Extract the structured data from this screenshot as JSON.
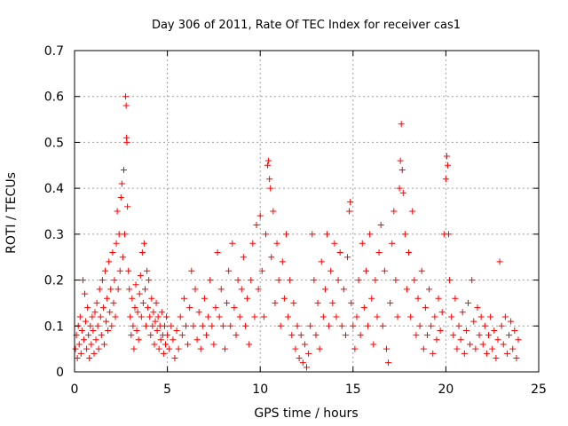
{
  "chart_data": {
    "type": "scatter",
    "title": "Day 306 of 2011, Rate Of TEC Index for receiver cas1",
    "xlabel": "GPS time / hours",
    "ylabel": "ROTI / TECUs",
    "xlim": [
      0,
      25
    ],
    "ylim": [
      0,
      0.7
    ],
    "x_ticks": [
      0,
      5,
      10,
      15,
      20,
      25
    ],
    "y_ticks": [
      0,
      0.1,
      0.2,
      0.3,
      0.4,
      0.5,
      0.6,
      0.7
    ],
    "x_tick_labels": [
      "0",
      "5",
      "10",
      "15",
      "20",
      "25"
    ],
    "y_tick_labels": [
      "0",
      "0.1",
      "0.2",
      "0.3",
      "0.4",
      "0.5",
      "0.6",
      "0.7"
    ],
    "grid": true,
    "marker": "+",
    "series": [
      {
        "name": "ROTI",
        "color": "#ff0000",
        "points": [
          [
            0.05,
            0.05
          ],
          [
            0.1,
            0.08
          ],
          [
            0.15,
            0.03
          ],
          [
            0.2,
            0.1
          ],
          [
            0.25,
            0.06
          ],
          [
            0.3,
            0.12
          ],
          [
            0.35,
            0.04
          ],
          [
            0.4,
            0.09
          ],
          [
            0.45,
            0.2
          ],
          [
            0.5,
            0.07
          ],
          [
            0.55,
            0.17
          ],
          [
            0.6,
            0.11
          ],
          [
            0.65,
            0.05
          ],
          [
            0.7,
            0.14
          ],
          [
            0.75,
            0.08
          ],
          [
            0.8,
            0.03
          ],
          [
            0.85,
            0.1
          ],
          [
            0.9,
            0.06
          ],
          [
            0.95,
            0.12
          ],
          [
            1.0,
            0.09
          ],
          [
            1.05,
            0.04
          ],
          [
            1.1,
            0.13
          ],
          [
            1.15,
            0.07
          ],
          [
            1.2,
            0.15
          ],
          [
            1.25,
            0.1
          ],
          [
            1.3,
            0.05
          ],
          [
            1.35,
            0.18
          ],
          [
            1.4,
            0.12
          ],
          [
            1.45,
            0.08
          ],
          [
            1.5,
            0.2
          ],
          [
            1.55,
            0.14
          ],
          [
            1.6,
            0.06
          ],
          [
            1.65,
            0.22
          ],
          [
            1.7,
            0.11
          ],
          [
            1.75,
            0.16
          ],
          [
            1.8,
            0.09
          ],
          [
            1.85,
            0.24
          ],
          [
            1.9,
            0.13
          ],
          [
            1.95,
            0.18
          ],
          [
            2.0,
            0.1
          ],
          [
            2.05,
            0.26
          ],
          [
            2.1,
            0.15
          ],
          [
            2.15,
            0.2
          ],
          [
            2.2,
            0.12
          ],
          [
            2.25,
            0.28
          ],
          [
            2.3,
            0.35
          ],
          [
            2.35,
            0.18
          ],
          [
            2.4,
            0.3
          ],
          [
            2.45,
            0.22
          ],
          [
            2.5,
            0.38
          ],
          [
            2.55,
            0.41
          ],
          [
            2.6,
            0.25
          ],
          [
            2.65,
            0.44
          ],
          [
            2.7,
            0.3
          ],
          [
            2.75,
            0.6
          ],
          [
            2.78,
            0.58
          ],
          [
            2.8,
            0.51
          ],
          [
            2.82,
            0.5
          ],
          [
            2.85,
            0.36
          ],
          [
            2.9,
            0.22
          ],
          [
            2.95,
            0.18
          ],
          [
            3.0,
            0.12
          ],
          [
            3.05,
            0.08
          ],
          [
            3.1,
            0.16
          ],
          [
            3.15,
            0.1
          ],
          [
            3.2,
            0.05
          ],
          [
            3.25,
            0.14
          ],
          [
            3.3,
            0.19
          ],
          [
            3.35,
            0.09
          ],
          [
            3.4,
            0.13
          ],
          [
            3.45,
            0.07
          ],
          [
            3.5,
            0.17
          ],
          [
            3.55,
            0.21
          ],
          [
            3.6,
            0.12
          ],
          [
            3.65,
            0.26
          ],
          [
            3.7,
            0.15
          ],
          [
            3.75,
            0.28
          ],
          [
            3.8,
            0.18
          ],
          [
            3.85,
            0.1
          ],
          [
            3.9,
            0.22
          ],
          [
            3.95,
            0.14
          ],
          [
            4.0,
            0.2
          ],
          [
            4.05,
            0.12
          ],
          [
            4.1,
            0.08
          ],
          [
            4.15,
            0.16
          ],
          [
            4.2,
            0.1
          ],
          [
            4.25,
            0.13
          ],
          [
            4.3,
            0.06
          ],
          [
            4.35,
            0.11
          ],
          [
            4.4,
            0.15
          ],
          [
            4.45,
            0.09
          ],
          [
            4.5,
            0.12
          ],
          [
            4.55,
            0.05
          ],
          [
            4.6,
            0.1
          ],
          [
            4.65,
            0.07
          ],
          [
            4.7,
            0.13
          ],
          [
            4.75,
            0.08
          ],
          [
            4.8,
            0.04
          ],
          [
            4.85,
            0.1
          ],
          [
            4.9,
            0.06
          ],
          [
            4.95,
            0.12
          ],
          [
            5.0,
            0.08
          ],
          [
            5.1,
            0.05
          ],
          [
            5.2,
            0.1
          ],
          [
            5.3,
            0.07
          ],
          [
            5.4,
            0.03
          ],
          [
            5.5,
            0.09
          ],
          [
            5.6,
            0.05
          ],
          [
            5.7,
            0.12
          ],
          [
            5.8,
            0.08
          ],
          [
            5.9,
            0.16
          ],
          [
            6.0,
            0.1
          ],
          [
            6.1,
            0.06
          ],
          [
            6.2,
            0.14
          ],
          [
            6.3,
            0.22
          ],
          [
            6.4,
            0.1
          ],
          [
            6.5,
            0.18
          ],
          [
            6.6,
            0.07
          ],
          [
            6.7,
            0.13
          ],
          [
            6.8,
            0.05
          ],
          [
            6.9,
            0.1
          ],
          [
            7.0,
            0.16
          ],
          [
            7.1,
            0.08
          ],
          [
            7.2,
            0.12
          ],
          [
            7.3,
            0.2
          ],
          [
            7.4,
            0.1
          ],
          [
            7.5,
            0.06
          ],
          [
            7.6,
            0.14
          ],
          [
            7.7,
            0.26
          ],
          [
            7.8,
            0.12
          ],
          [
            7.9,
            0.18
          ],
          [
            8.0,
            0.1
          ],
          [
            8.1,
            0.05
          ],
          [
            8.2,
            0.15
          ],
          [
            8.3,
            0.22
          ],
          [
            8.4,
            0.1
          ],
          [
            8.5,
            0.28
          ],
          [
            8.6,
            0.14
          ],
          [
            8.7,
            0.08
          ],
          [
            8.8,
            0.2
          ],
          [
            8.9,
            0.12
          ],
          [
            9.0,
            0.18
          ],
          [
            9.1,
            0.25
          ],
          [
            9.2,
            0.1
          ],
          [
            9.3,
            0.16
          ],
          [
            9.4,
            0.06
          ],
          [
            9.5,
            0.2
          ],
          [
            9.6,
            0.28
          ],
          [
            9.7,
            0.12
          ],
          [
            9.8,
            0.32
          ],
          [
            9.9,
            0.18
          ],
          [
            10.0,
            0.34
          ],
          [
            10.1,
            0.22
          ],
          [
            10.2,
            0.12
          ],
          [
            10.3,
            0.3
          ],
          [
            10.4,
            0.45
          ],
          [
            10.45,
            0.46
          ],
          [
            10.5,
            0.42
          ],
          [
            10.55,
            0.4
          ],
          [
            10.6,
            0.25
          ],
          [
            10.7,
            0.35
          ],
          [
            10.8,
            0.15
          ],
          [
            10.9,
            0.28
          ],
          [
            11.0,
            0.2
          ],
          [
            11.1,
            0.1
          ],
          [
            11.2,
            0.24
          ],
          [
            11.3,
            0.16
          ],
          [
            11.4,
            0.3
          ],
          [
            11.5,
            0.12
          ],
          [
            11.6,
            0.2
          ],
          [
            11.7,
            0.08
          ],
          [
            11.8,
            0.15
          ],
          [
            11.9,
            0.05
          ],
          [
            12.0,
            0.1
          ],
          [
            12.1,
            0.03
          ],
          [
            12.2,
            0.08
          ],
          [
            12.3,
            0.02
          ],
          [
            12.4,
            0.06
          ],
          [
            12.5,
            0.01
          ],
          [
            12.6,
            0.04
          ],
          [
            12.7,
            0.1
          ],
          [
            12.8,
            0.3
          ],
          [
            12.9,
            0.2
          ],
          [
            13.0,
            0.08
          ],
          [
            13.1,
            0.15
          ],
          [
            13.2,
            0.05
          ],
          [
            13.3,
            0.24
          ],
          [
            13.4,
            0.12
          ],
          [
            13.5,
            0.18
          ],
          [
            13.6,
            0.3
          ],
          [
            13.7,
            0.1
          ],
          [
            13.8,
            0.22
          ],
          [
            13.9,
            0.15
          ],
          [
            14.0,
            0.28
          ],
          [
            14.1,
            0.12
          ],
          [
            14.2,
            0.2
          ],
          [
            14.3,
            0.26
          ],
          [
            14.4,
            0.1
          ],
          [
            14.5,
            0.18
          ],
          [
            14.6,
            0.08
          ],
          [
            14.7,
            0.25
          ],
          [
            14.8,
            0.35
          ],
          [
            14.85,
            0.37
          ],
          [
            14.9,
            0.15
          ],
          [
            15.0,
            0.1
          ],
          [
            15.1,
            0.05
          ],
          [
            15.2,
            0.12
          ],
          [
            15.3,
            0.2
          ],
          [
            15.4,
            0.08
          ],
          [
            15.5,
            0.28
          ],
          [
            15.6,
            0.14
          ],
          [
            15.7,
            0.22
          ],
          [
            15.8,
            0.1
          ],
          [
            15.9,
            0.3
          ],
          [
            16.0,
            0.16
          ],
          [
            16.1,
            0.06
          ],
          [
            16.2,
            0.2
          ],
          [
            16.3,
            0.12
          ],
          [
            16.4,
            0.26
          ],
          [
            16.5,
            0.32
          ],
          [
            16.6,
            0.1
          ],
          [
            16.7,
            0.22
          ],
          [
            16.8,
            0.05
          ],
          [
            16.9,
            0.02
          ],
          [
            17.0,
            0.15
          ],
          [
            17.1,
            0.28
          ],
          [
            17.2,
            0.35
          ],
          [
            17.3,
            0.2
          ],
          [
            17.4,
            0.12
          ],
          [
            17.5,
            0.4
          ],
          [
            17.55,
            0.46
          ],
          [
            17.6,
            0.54
          ],
          [
            17.65,
            0.44
          ],
          [
            17.7,
            0.39
          ],
          [
            17.8,
            0.3
          ],
          [
            17.9,
            0.18
          ],
          [
            18.0,
            0.26
          ],
          [
            18.1,
            0.12
          ],
          [
            18.2,
            0.35
          ],
          [
            18.3,
            0.2
          ],
          [
            18.4,
            0.08
          ],
          [
            18.5,
            0.16
          ],
          [
            18.6,
            0.1
          ],
          [
            18.7,
            0.22
          ],
          [
            18.8,
            0.05
          ],
          [
            18.9,
            0.14
          ],
          [
            19.0,
            0.08
          ],
          [
            19.1,
            0.18
          ],
          [
            19.2,
            0.1
          ],
          [
            19.3,
            0.04
          ],
          [
            19.4,
            0.12
          ],
          [
            19.5,
            0.07
          ],
          [
            19.6,
            0.16
          ],
          [
            19.7,
            0.09
          ],
          [
            19.8,
            0.13
          ],
          [
            19.9,
            0.3
          ],
          [
            20.0,
            0.42
          ],
          [
            20.05,
            0.47
          ],
          [
            20.1,
            0.45
          ],
          [
            20.15,
            0.3
          ],
          [
            20.2,
            0.2
          ],
          [
            20.3,
            0.12
          ],
          [
            20.4,
            0.08
          ],
          [
            20.5,
            0.16
          ],
          [
            20.6,
            0.05
          ],
          [
            20.7,
            0.1
          ],
          [
            20.8,
            0.07
          ],
          [
            20.9,
            0.13
          ],
          [
            21.0,
            0.04
          ],
          [
            21.1,
            0.09
          ],
          [
            21.2,
            0.15
          ],
          [
            21.3,
            0.06
          ],
          [
            21.4,
            0.2
          ],
          [
            21.5,
            0.11
          ],
          [
            21.6,
            0.05
          ],
          [
            21.7,
            0.14
          ],
          [
            21.8,
            0.08
          ],
          [
            21.9,
            0.12
          ],
          [
            22.0,
            0.06
          ],
          [
            22.1,
            0.1
          ],
          [
            22.2,
            0.04
          ],
          [
            22.3,
            0.08
          ],
          [
            22.4,
            0.12
          ],
          [
            22.5,
            0.05
          ],
          [
            22.6,
            0.09
          ],
          [
            22.7,
            0.03
          ],
          [
            22.8,
            0.07
          ],
          [
            22.9,
            0.24
          ],
          [
            23.0,
            0.1
          ],
          [
            23.1,
            0.06
          ],
          [
            23.2,
            0.12
          ],
          [
            23.3,
            0.04
          ],
          [
            23.4,
            0.08
          ],
          [
            23.5,
            0.11
          ],
          [
            23.6,
            0.05
          ],
          [
            23.7,
            0.09
          ],
          [
            23.8,
            0.03
          ],
          [
            23.9,
            0.07
          ]
        ]
      }
    ]
  }
}
